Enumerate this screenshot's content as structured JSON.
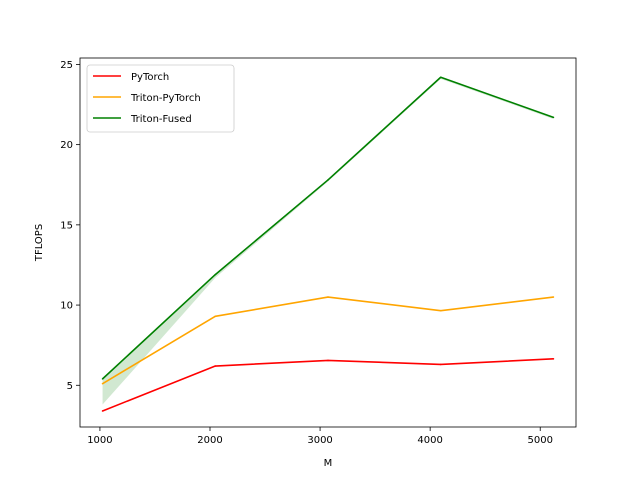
{
  "chart_data": {
    "type": "line",
    "title": "",
    "xlabel": "M",
    "ylabel": "TFLOPS",
    "x": [
      1024,
      2048,
      3072,
      4096,
      5120
    ],
    "xlim": [
      819,
      5325
    ],
    "ylim": [
      2.4,
      25.4
    ],
    "xticks": [
      1000,
      2000,
      3000,
      4000,
      5000
    ],
    "yticks": [
      5,
      10,
      15,
      20,
      25
    ],
    "grid": false,
    "legend_position": "top-left",
    "series": [
      {
        "name": "PyTorch",
        "color": "#ff0000",
        "values": [
          3.4,
          6.2,
          6.55,
          6.3,
          6.65
        ]
      },
      {
        "name": "Triton-PyTorch",
        "color": "#ffa500",
        "values": [
          5.1,
          9.3,
          10.5,
          9.65,
          10.5
        ]
      },
      {
        "name": "Triton-Fused",
        "color": "#008000",
        "values": [
          5.4,
          11.9,
          17.8,
          24.2,
          21.7
        ],
        "band_lower": [
          3.8,
          11.7,
          17.7,
          24.1,
          21.6
        ]
      }
    ]
  }
}
